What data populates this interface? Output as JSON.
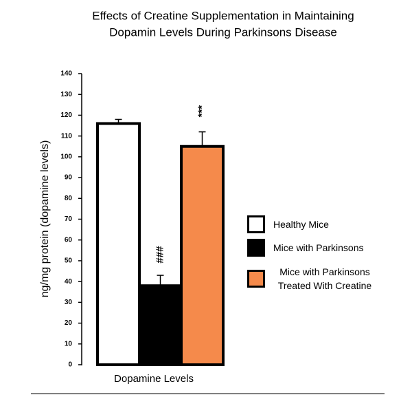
{
  "chart_data": {
    "type": "bar",
    "title": [
      "Effects of Creatine Supplementation in Maintaining",
      "Dopamin Levels During Parkinsons Disease"
    ],
    "xlabel": "Dopamine Levels",
    "ylabel": "ng/mg protein (dopamine levels)",
    "ylim": [
      0,
      140
    ],
    "yticks": [
      0,
      10,
      20,
      30,
      40,
      50,
      60,
      70,
      80,
      90,
      100,
      110,
      120,
      130,
      140
    ],
    "series": [
      {
        "name": "Healthy Mice",
        "color": "#ffffff",
        "values": [
          116
        ],
        "errors": [
          2
        ]
      },
      {
        "name": "Mice with Parkinsons",
        "color": "#000000",
        "values": [
          38
        ],
        "errors": [
          5
        ],
        "annotation": "###"
      },
      {
        "name": "Mice with Parkinsons Treated With Creatine",
        "color": "#f58a4b",
        "values": [
          105
        ],
        "errors": [
          7
        ],
        "annotation": "***"
      }
    ]
  }
}
